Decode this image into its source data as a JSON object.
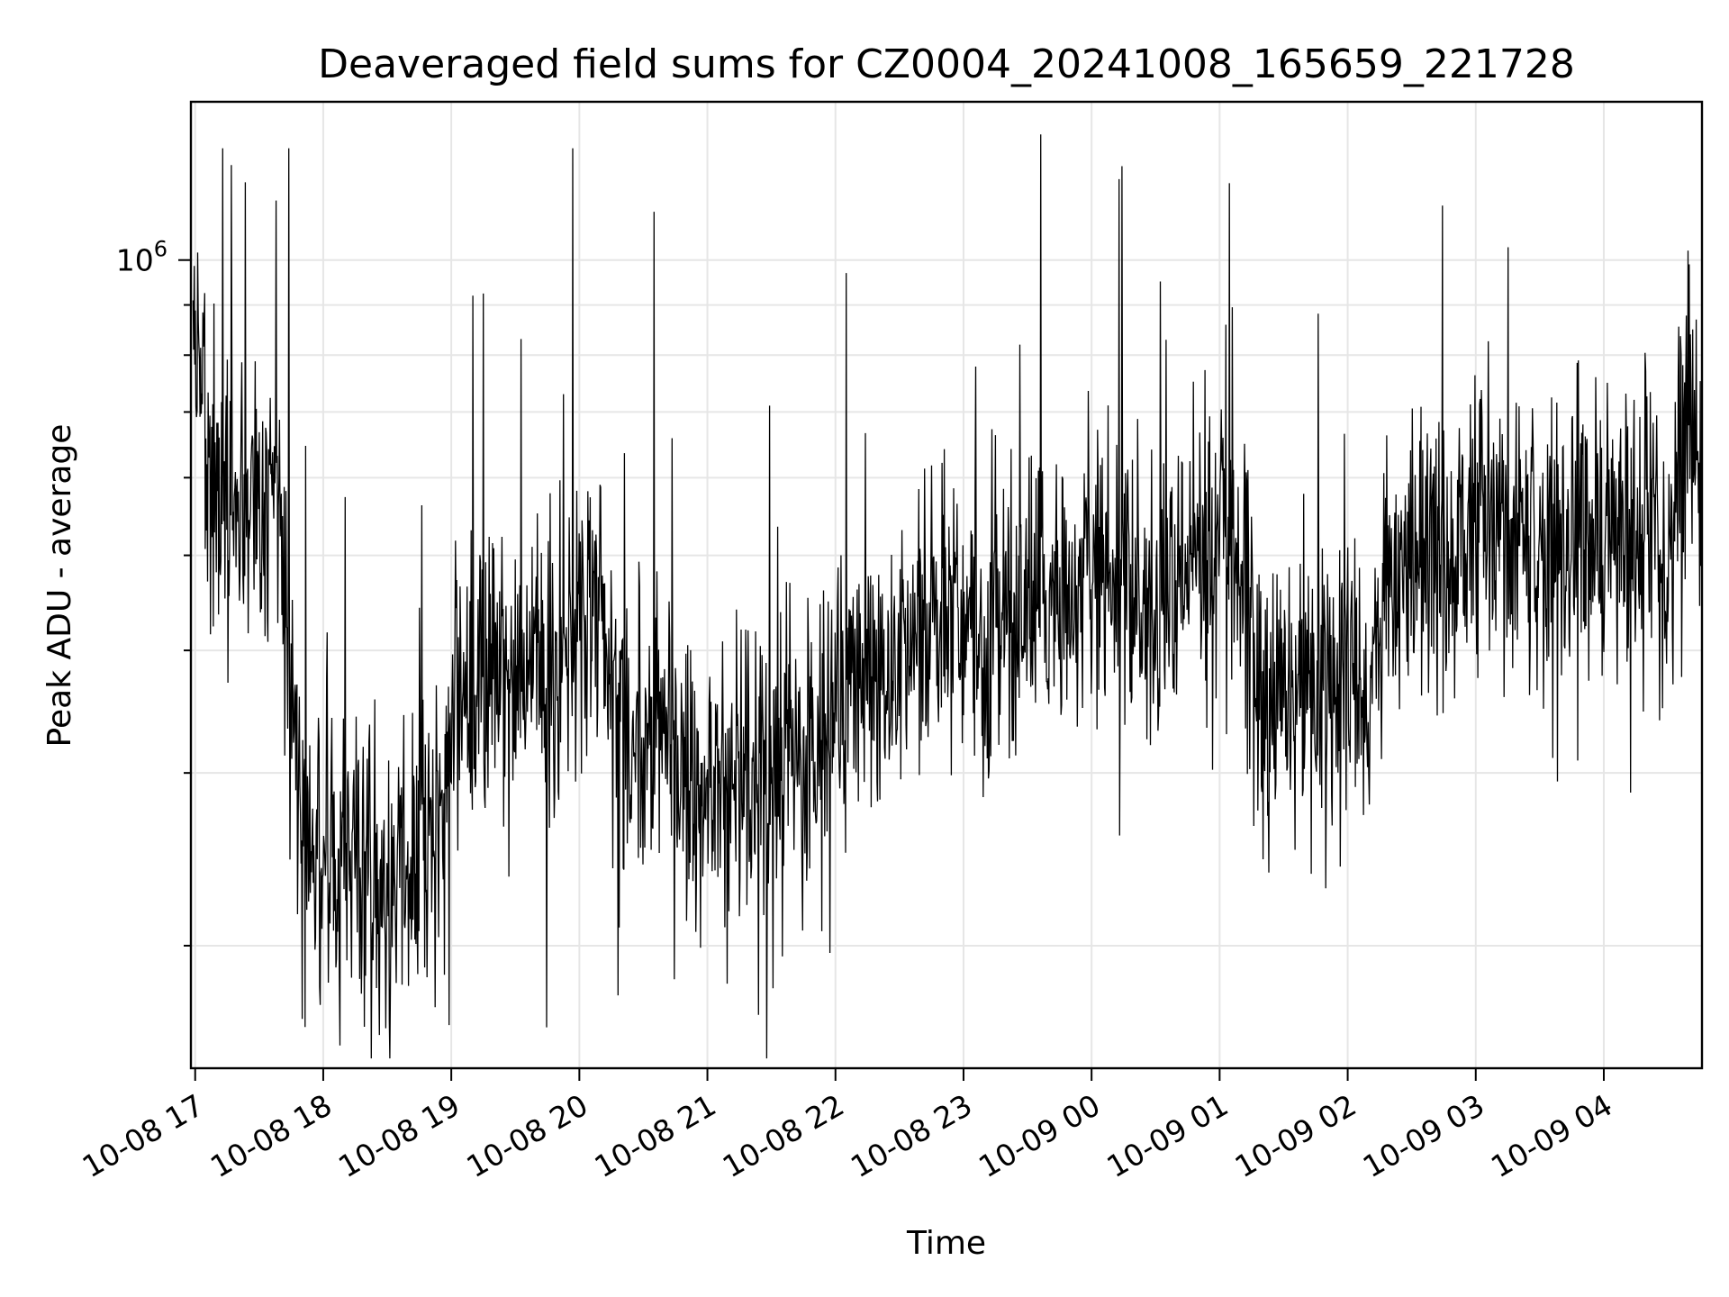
{
  "chart_data": {
    "type": "line",
    "title": "Deaveraged field sums for CZ0004_20241008_165659_221728",
    "xlabel": "Time",
    "ylabel": "Peak ADU - average",
    "yscale": "log",
    "ylim": [
      150000,
      1450000
    ],
    "xlim": [
      "2024-10-08 16:58",
      "2024-10-09 04:46"
    ],
    "grid": true,
    "y_major_ticks": [
      {
        "value": 1000000,
        "label_base": "10",
        "label_exp": "6"
      }
    ],
    "y_minor_gridlines": [
      200000,
      300000,
      400000,
      500000,
      600000,
      700000,
      800000,
      900000
    ],
    "x_ticks": [
      {
        "time": "2024-10-08 17:00",
        "label": "10-08 17"
      },
      {
        "time": "2024-10-08 18:00",
        "label": "10-08 18"
      },
      {
        "time": "2024-10-08 19:00",
        "label": "10-08 19"
      },
      {
        "time": "2024-10-08 20:00",
        "label": "10-08 20"
      },
      {
        "time": "2024-10-08 21:00",
        "label": "10-08 21"
      },
      {
        "time": "2024-10-08 22:00",
        "label": "10-08 22"
      },
      {
        "time": "2024-10-08 23:00",
        "label": "10-08 23"
      },
      {
        "time": "2024-10-09 00:00",
        "label": "10-09 00"
      },
      {
        "time": "2024-10-09 01:00",
        "label": "10-09 01"
      },
      {
        "time": "2024-10-09 02:00",
        "label": "10-09 02"
      },
      {
        "time": "2024-10-09 03:00",
        "label": "10-09 03"
      },
      {
        "time": "2024-10-09 04:00",
        "label": "10-09 04"
      }
    ],
    "series": [
      {
        "color": "#000000",
        "trend_points": [
          {
            "time": "2024-10-08 16:59",
            "value": 800000
          },
          {
            "time": "2024-10-08 17:10",
            "value": 600000
          },
          {
            "time": "2024-10-08 17:25",
            "value": 560000
          },
          {
            "time": "2024-10-08 17:40",
            "value": 550000
          },
          {
            "time": "2024-10-08 17:50",
            "value": 260000
          },
          {
            "time": "2024-10-08 18:10",
            "value": 240000
          },
          {
            "time": "2024-10-08 18:30",
            "value": 230000
          },
          {
            "time": "2024-10-08 18:50",
            "value": 255000
          },
          {
            "time": "2024-10-08 19:05",
            "value": 360000
          },
          {
            "time": "2024-10-08 19:30",
            "value": 380000
          },
          {
            "time": "2024-10-08 19:50",
            "value": 400000
          },
          {
            "time": "2024-10-08 20:10",
            "value": 430000
          },
          {
            "time": "2024-10-08 20:20",
            "value": 340000
          },
          {
            "time": "2024-10-08 20:40",
            "value": 320000
          },
          {
            "time": "2024-10-08 21:00",
            "value": 290000
          },
          {
            "time": "2024-10-08 21:30",
            "value": 295000
          },
          {
            "time": "2024-10-08 21:50",
            "value": 320000
          },
          {
            "time": "2024-10-08 22:00",
            "value": 360000
          },
          {
            "time": "2024-10-08 22:30",
            "value": 380000
          },
          {
            "time": "2024-10-08 22:50",
            "value": 430000
          },
          {
            "time": "2024-10-08 23:10",
            "value": 420000
          },
          {
            "time": "2024-10-08 23:40",
            "value": 460000
          },
          {
            "time": "2024-10-09 00:10",
            "value": 480000
          },
          {
            "time": "2024-10-09 00:30",
            "value": 420000
          },
          {
            "time": "2024-10-09 00:45",
            "value": 500000
          },
          {
            "time": "2024-10-09 01:05",
            "value": 520000
          },
          {
            "time": "2024-10-09 01:20",
            "value": 360000
          },
          {
            "time": "2024-10-09 01:40",
            "value": 370000
          },
          {
            "time": "2024-10-09 02:00",
            "value": 360000
          },
          {
            "time": "2024-10-09 02:10",
            "value": 370000
          },
          {
            "time": "2024-10-09 02:20",
            "value": 470000
          },
          {
            "time": "2024-10-09 02:50",
            "value": 520000
          },
          {
            "time": "2024-10-09 03:10",
            "value": 530000
          },
          {
            "time": "2024-10-09 03:40",
            "value": 500000
          },
          {
            "time": "2024-10-09 04:00",
            "value": 520000
          },
          {
            "time": "2024-10-09 04:30",
            "value": 510000
          },
          {
            "time": "2024-10-09 04:40",
            "value": 700000
          },
          {
            "time": "2024-10-09 04:46",
            "value": 560000
          }
        ],
        "noticeable_spikes": [
          {
            "time": "2024-10-08 17:13",
            "value": 1300000
          },
          {
            "time": "2024-10-08 17:17",
            "value": 1250000
          },
          {
            "time": "2024-10-08 17:38",
            "value": 1150000
          },
          {
            "time": "2024-10-08 17:44",
            "value": 1300000
          },
          {
            "time": "2024-10-08 19:10",
            "value": 920000
          },
          {
            "time": "2024-10-08 19:57",
            "value": 1300000
          },
          {
            "time": "2024-10-08 20:35",
            "value": 1120000
          },
          {
            "time": "2024-10-08 22:05",
            "value": 970000
          },
          {
            "time": "2024-10-09 04:40",
            "value": 990000
          }
        ],
        "noticeable_dips": [
          {
            "time": "2024-10-08 18:31",
            "value": 168000
          },
          {
            "time": "2024-10-08 18:59",
            "value": 166000
          },
          {
            "time": "2024-10-08 20:18",
            "value": 178000
          },
          {
            "time": "2024-10-08 21:24",
            "value": 170000
          },
          {
            "time": "2024-10-08 21:35",
            "value": 195000
          }
        ]
      }
    ]
  }
}
